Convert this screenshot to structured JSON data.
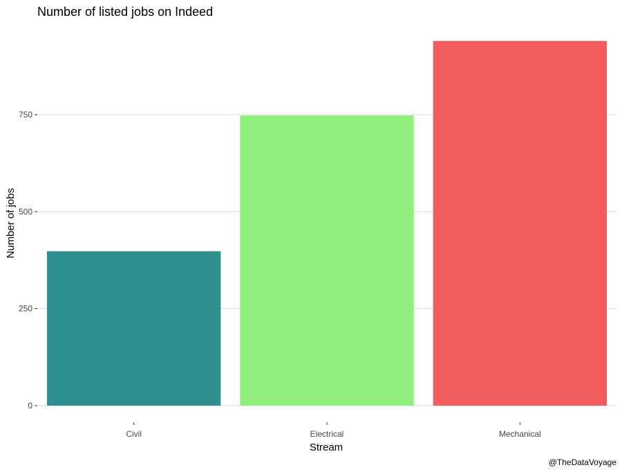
{
  "chart_data": {
    "type": "bar",
    "title": "Number of listed jobs on Indeed",
    "xlabel": "Stream",
    "ylabel": "Number of jobs",
    "caption": "@TheDataVoyage",
    "categories": [
      "Civil",
      "Electrical",
      "Mechanical"
    ],
    "values": [
      398,
      748,
      940
    ],
    "colors": [
      "#2e8f8e",
      "#90ee7d",
      "#f25c5c"
    ],
    "yticks": [
      0,
      250,
      500,
      750
    ],
    "ylim": [
      0,
      985
    ],
    "grid": true,
    "legend": "none"
  }
}
